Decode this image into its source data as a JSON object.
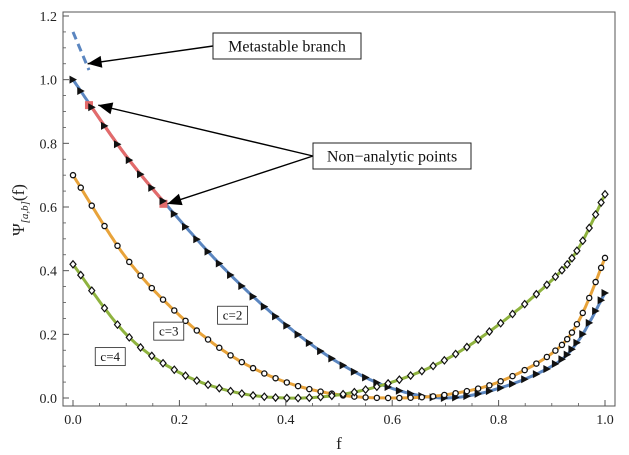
{
  "chart_data": {
    "type": "line",
    "xlabel": "f",
    "ylabel": "Ψ[a,b](f)",
    "ylabel_main": "Ψ",
    "ylabel_sub": "[a,b]",
    "ylabel_arg": "(f)",
    "xlim": [
      0,
      1
    ],
    "ylim": [
      0,
      1.2
    ],
    "xticks": [
      "0.0",
      "0.2",
      "0.4",
      "0.6",
      "0.8",
      "1.0"
    ],
    "yticks": [
      "0.0",
      "0.2",
      "0.4",
      "0.6",
      "0.8",
      "1.0",
      "1.2"
    ],
    "grid": false,
    "series": [
      {
        "name": "c=2",
        "color": "#5b86c0",
        "marker": "triangle-right",
        "x": [
          0.0,
          0.1,
          0.2,
          0.3,
          0.4,
          0.5,
          0.6,
          0.7,
          0.8,
          0.9,
          0.95,
          1.0
        ],
        "y": [
          1.0,
          0.76,
          0.56,
          0.38,
          0.23,
          0.11,
          0.03,
          0.0,
          0.03,
          0.1,
          0.18,
          0.33
        ],
        "metastable_x": [
          0.0,
          0.03
        ],
        "metastable_y": [
          1.15,
          1.03
        ],
        "highlight_x": [
          0.03,
          0.17
        ],
        "highlight_y": [
          0.92,
          0.61
        ],
        "highlight_color": "#e36b6b"
      },
      {
        "name": "c=3",
        "color": "#e8a33a",
        "marker": "circle",
        "x": [
          0.0,
          0.1,
          0.2,
          0.3,
          0.4,
          0.5,
          0.6,
          0.7,
          0.8,
          0.9,
          0.95,
          1.0
        ],
        "y": [
          0.7,
          0.44,
          0.26,
          0.13,
          0.05,
          0.01,
          0.0,
          0.01,
          0.05,
          0.14,
          0.24,
          0.44
        ]
      },
      {
        "name": "c=4",
        "color": "#8fb33f",
        "marker": "diamond",
        "x": [
          0.0,
          0.1,
          0.2,
          0.3,
          0.4,
          0.5,
          0.6,
          0.7,
          0.8,
          0.9,
          0.95,
          1.0
        ],
        "y": [
          0.42,
          0.2,
          0.08,
          0.02,
          0.0,
          0.01,
          0.05,
          0.12,
          0.23,
          0.37,
          0.47,
          0.64
        ]
      }
    ],
    "annotations": [
      {
        "text": "Metastable branch",
        "points_to": [
          [
            0.02,
            1.05
          ]
        ]
      },
      {
        "text": "Non−analytic points",
        "points_to": [
          [
            0.04,
            0.92
          ],
          [
            0.17,
            0.61
          ]
        ]
      }
    ],
    "curve_labels": [
      {
        "text": "c=2",
        "at": [
          0.3,
          0.26
        ]
      },
      {
        "text": "c=3",
        "at": [
          0.18,
          0.21
        ]
      },
      {
        "text": "c=4",
        "at": [
          0.07,
          0.13
        ]
      }
    ]
  }
}
